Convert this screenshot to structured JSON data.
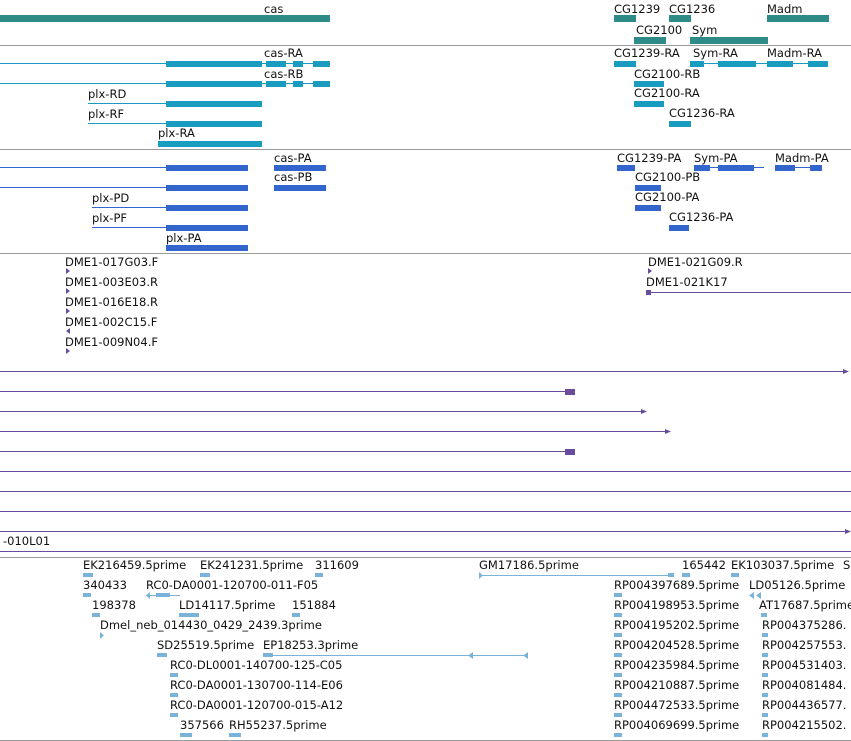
{
  "colors": {
    "genes": "#2e8b87",
    "transcripts_ra": "#1a9bc0",
    "transcripts_pa": "#3366cc",
    "clones": "#6a4c9c",
    "ests": "#7ab3d9",
    "separator": "#9a9a9a"
  },
  "tracks": {
    "genes": [
      {
        "label": "cas"
      },
      {
        "label": "CG1239"
      },
      {
        "label": "CG1236"
      },
      {
        "label": "Madm"
      },
      {
        "label": "CG2100"
      },
      {
        "label": "Sym"
      }
    ],
    "transcripts_ra": [
      {
        "label": "cas-RA"
      },
      {
        "label": "cas-RB"
      },
      {
        "label": "plx-RD"
      },
      {
        "label": "plx-RF"
      },
      {
        "label": "plx-RA"
      },
      {
        "label": "CG1239-RA"
      },
      {
        "label": "Sym-RA"
      },
      {
        "label": "Madm-RA"
      },
      {
        "label": "CG2100-RB"
      },
      {
        "label": "CG2100-RA"
      },
      {
        "label": "CG1236-RA"
      }
    ],
    "transcripts_pa": [
      {
        "label": "cas-PA"
      },
      {
        "label": "cas-PB"
      },
      {
        "label": "plx-PD"
      },
      {
        "label": "plx-PF"
      },
      {
        "label": "plx-PA"
      },
      {
        "label": "CG1239-PA"
      },
      {
        "label": "Sym-PA"
      },
      {
        "label": "Madm-PA"
      },
      {
        "label": "CG2100-PB"
      },
      {
        "label": "CG2100-PA"
      },
      {
        "label": "CG1236-PA"
      }
    ],
    "clones": [
      {
        "label": "DME1-017G03.F"
      },
      {
        "label": "DME1-003E03.R"
      },
      {
        "label": "DME1-016E18.R"
      },
      {
        "label": "DME1-002C15.F"
      },
      {
        "label": "DME1-009N04.F"
      },
      {
        "label": "DME1-021G09.R"
      },
      {
        "label": "DME1-021K17"
      }
    ],
    "long_reads": [
      {
        "label": "-010L01"
      }
    ],
    "ests": [
      {
        "label": "EK216459.5prime"
      },
      {
        "label": "EK241231.5prime"
      },
      {
        "label": "311609"
      },
      {
        "label": "GM17186.5prime"
      },
      {
        "label": "165442"
      },
      {
        "label": "EK103037.5prime"
      },
      {
        "label": "S"
      },
      {
        "label": "340433"
      },
      {
        "label": "RC0-DA0001-120700-011-F05"
      },
      {
        "label": "RP004397689.5prime"
      },
      {
        "label": "LD05126.5prime"
      },
      {
        "label": "198378"
      },
      {
        "label": "LD14117.5prime"
      },
      {
        "label": "151884"
      },
      {
        "label": "RP004198953.5prime"
      },
      {
        "label": "AT17687.5prime"
      },
      {
        "label": "Dmel_neb_014430_0429_2439.3prime"
      },
      {
        "label": "RP004195202.5prime"
      },
      {
        "label": "RP004375286."
      },
      {
        "label": "SD25519.5prime"
      },
      {
        "label": "EP18253.3prime"
      },
      {
        "label": "RP004204528.5prime"
      },
      {
        "label": "RP004257553."
      },
      {
        "label": "RC0-DL0001-140700-125-C05"
      },
      {
        "label": "RP004235984.5prime"
      },
      {
        "label": "RP004531403."
      },
      {
        "label": "RC0-DA0001-130700-114-E06"
      },
      {
        "label": "RP004210887.5prime"
      },
      {
        "label": "RP004081484."
      },
      {
        "label": "RC0-DA0001-120700-015-A12"
      },
      {
        "label": "RP004472533.5prime"
      },
      {
        "label": "RP004436577."
      },
      {
        "label": "357566"
      },
      {
        "label": "RH55237.5prime"
      },
      {
        "label": "RP004069699.5prime"
      },
      {
        "label": "RP004215502."
      }
    ]
  }
}
